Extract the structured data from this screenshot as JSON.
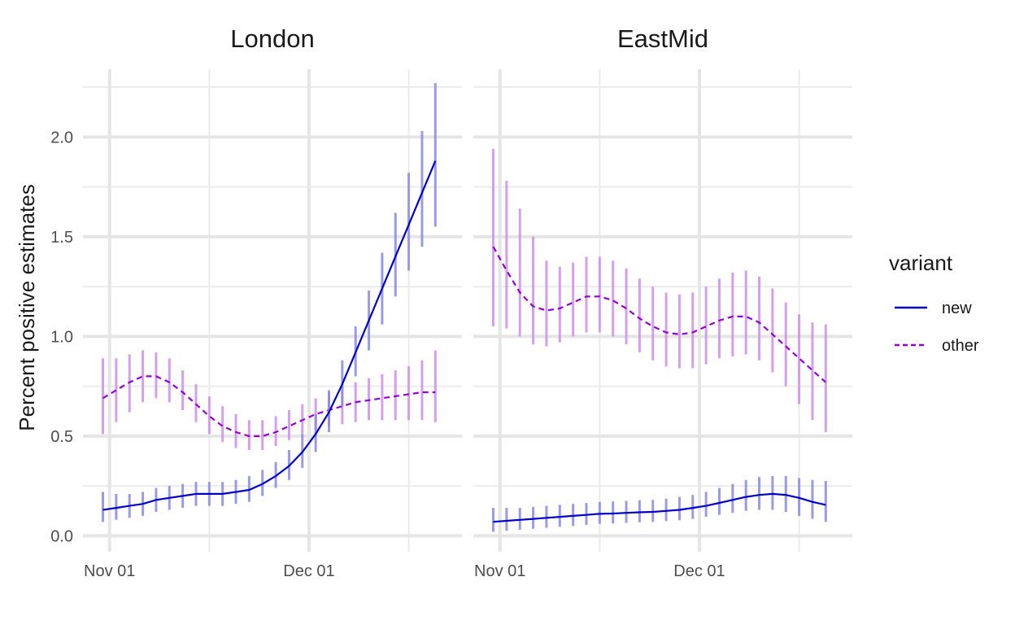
{
  "chart_data": {
    "type": "line",
    "y_label": "Percent positive estimates",
    "x_tick_labels": [
      "Nov 01",
      "Dec 01"
    ],
    "x_tick_dates": [
      "2020-11-01",
      "2020-12-01"
    ],
    "y_ticks": [
      0.0,
      0.5,
      1.0,
      1.5,
      2.0
    ],
    "y_tick_labels": [
      "0.0",
      "0.5",
      "1.0",
      "1.5",
      "2.0"
    ],
    "ylim": [
      -0.08,
      2.34
    ],
    "xlim": [
      "2020-10-28",
      "2020-12-24"
    ],
    "grid": true,
    "legend": {
      "title": "variant",
      "placement": "right",
      "entries": [
        {
          "label": "new",
          "color": "#0000c8",
          "dash": "solid"
        },
        {
          "label": "other",
          "color": "#9400d3",
          "dash": "dashed"
        }
      ]
    },
    "colors": {
      "new_line": "#0000c8",
      "new_bar": "#8888e0",
      "other_line": "#9400d3",
      "other_bar": "#cc8ee8"
    },
    "panels": [
      {
        "title": "London",
        "series": [
          {
            "name": "new",
            "dates": [
              "2020-10-31",
              "2020-11-02",
              "2020-11-04",
              "2020-11-06",
              "2020-11-08",
              "2020-11-10",
              "2020-11-12",
              "2020-11-14",
              "2020-11-16",
              "2020-11-18",
              "2020-11-20",
              "2020-11-22",
              "2020-11-24",
              "2020-11-26",
              "2020-11-28",
              "2020-11-30",
              "2020-12-02",
              "2020-12-04",
              "2020-12-06",
              "2020-12-08",
              "2020-12-10",
              "2020-12-12",
              "2020-12-14",
              "2020-12-16",
              "2020-12-18",
              "2020-12-20"
            ],
            "values": [
              0.13,
              0.14,
              0.15,
              0.16,
              0.18,
              0.19,
              0.2,
              0.21,
              0.21,
              0.21,
              0.22,
              0.23,
              0.26,
              0.3,
              0.35,
              0.42,
              0.51,
              0.62,
              0.76,
              0.92,
              1.08,
              1.24,
              1.4,
              1.56,
              1.72,
              1.88
            ],
            "lower": [
              0.07,
              0.08,
              0.09,
              0.1,
              0.12,
              0.13,
              0.14,
              0.15,
              0.15,
              0.15,
              0.16,
              0.17,
              0.2,
              0.24,
              0.28,
              0.34,
              0.42,
              0.52,
              0.65,
              0.8,
              0.93,
              1.06,
              1.2,
              1.33,
              1.45,
              1.55
            ],
            "upper": [
              0.22,
              0.21,
              0.21,
              0.22,
              0.24,
              0.25,
              0.26,
              0.27,
              0.27,
              0.27,
              0.28,
              0.3,
              0.33,
              0.37,
              0.43,
              0.51,
              0.61,
              0.73,
              0.88,
              1.05,
              1.23,
              1.42,
              1.62,
              1.82,
              2.03,
              2.27
            ]
          },
          {
            "name": "other",
            "dates": [
              "2020-10-31",
              "2020-11-02",
              "2020-11-04",
              "2020-11-06",
              "2020-11-08",
              "2020-11-10",
              "2020-11-12",
              "2020-11-14",
              "2020-11-16",
              "2020-11-18",
              "2020-11-20",
              "2020-11-22",
              "2020-11-24",
              "2020-11-26",
              "2020-11-28",
              "2020-11-30",
              "2020-12-02",
              "2020-12-04",
              "2020-12-06",
              "2020-12-08",
              "2020-12-10",
              "2020-12-12",
              "2020-12-14",
              "2020-12-16",
              "2020-12-18",
              "2020-12-20"
            ],
            "values": [
              0.69,
              0.73,
              0.77,
              0.8,
              0.8,
              0.77,
              0.72,
              0.66,
              0.6,
              0.55,
              0.52,
              0.5,
              0.5,
              0.52,
              0.55,
              0.58,
              0.61,
              0.63,
              0.65,
              0.67,
              0.68,
              0.69,
              0.7,
              0.71,
              0.72,
              0.72
            ],
            "lower": [
              0.51,
              0.57,
              0.62,
              0.67,
              0.69,
              0.67,
              0.63,
              0.57,
              0.51,
              0.47,
              0.44,
              0.43,
              0.43,
              0.45,
              0.48,
              0.51,
              0.53,
              0.55,
              0.56,
              0.57,
              0.58,
              0.58,
              0.58,
              0.58,
              0.58,
              0.57
            ],
            "upper": [
              0.89,
              0.89,
              0.91,
              0.93,
              0.92,
              0.89,
              0.83,
              0.76,
              0.7,
              0.65,
              0.61,
              0.58,
              0.58,
              0.6,
              0.63,
              0.66,
              0.69,
              0.72,
              0.75,
              0.77,
              0.79,
              0.81,
              0.83,
              0.85,
              0.88,
              0.93
            ]
          }
        ]
      },
      {
        "title": "EastMid",
        "series": [
          {
            "name": "new",
            "dates": [
              "2020-10-31",
              "2020-11-02",
              "2020-11-04",
              "2020-11-06",
              "2020-11-08",
              "2020-11-10",
              "2020-11-12",
              "2020-11-14",
              "2020-11-16",
              "2020-11-18",
              "2020-11-20",
              "2020-11-22",
              "2020-11-24",
              "2020-11-26",
              "2020-11-28",
              "2020-11-30",
              "2020-12-02",
              "2020-12-04",
              "2020-12-06",
              "2020-12-08",
              "2020-12-10",
              "2020-12-12",
              "2020-12-14",
              "2020-12-16",
              "2020-12-18",
              "2020-12-20"
            ],
            "values": [
              0.07,
              0.075,
              0.08,
              0.085,
              0.09,
              0.095,
              0.1,
              0.105,
              0.11,
              0.112,
              0.115,
              0.118,
              0.12,
              0.125,
              0.13,
              0.14,
              0.15,
              0.165,
              0.18,
              0.195,
              0.205,
              0.21,
              0.205,
              0.19,
              0.17,
              0.155
            ],
            "lower": [
              0.02,
              0.025,
              0.03,
              0.035,
              0.04,
              0.045,
              0.05,
              0.055,
              0.06,
              0.062,
              0.065,
              0.068,
              0.07,
              0.074,
              0.078,
              0.085,
              0.095,
              0.105,
              0.115,
              0.125,
              0.13,
              0.13,
              0.12,
              0.1,
              0.085,
              0.07
            ],
            "upper": [
              0.14,
              0.14,
              0.14,
              0.145,
              0.15,
              0.155,
              0.16,
              0.165,
              0.17,
              0.172,
              0.175,
              0.178,
              0.18,
              0.186,
              0.195,
              0.205,
              0.22,
              0.24,
              0.26,
              0.28,
              0.295,
              0.3,
              0.3,
              0.29,
              0.28,
              0.275
            ]
          },
          {
            "name": "other",
            "dates": [
              "2020-10-31",
              "2020-11-02",
              "2020-11-04",
              "2020-11-06",
              "2020-11-08",
              "2020-11-10",
              "2020-11-12",
              "2020-11-14",
              "2020-11-16",
              "2020-11-18",
              "2020-11-20",
              "2020-11-22",
              "2020-11-24",
              "2020-11-26",
              "2020-11-28",
              "2020-11-30",
              "2020-12-02",
              "2020-12-04",
              "2020-12-06",
              "2020-12-08",
              "2020-12-10",
              "2020-12-12",
              "2020-12-14",
              "2020-12-16",
              "2020-12-18",
              "2020-12-20"
            ],
            "values": [
              1.45,
              1.33,
              1.22,
              1.15,
              1.13,
              1.14,
              1.17,
              1.2,
              1.2,
              1.18,
              1.14,
              1.09,
              1.05,
              1.02,
              1.01,
              1.02,
              1.05,
              1.08,
              1.1,
              1.1,
              1.07,
              1.01,
              0.95,
              0.89,
              0.83,
              0.77
            ],
            "lower": [
              1.05,
              1.04,
              1.0,
              0.96,
              0.95,
              0.97,
              1.0,
              1.02,
              1.02,
              1.0,
              0.96,
              0.92,
              0.88,
              0.85,
              0.84,
              0.84,
              0.86,
              0.89,
              0.9,
              0.91,
              0.88,
              0.82,
              0.75,
              0.66,
              0.58,
              0.52
            ],
            "upper": [
              1.94,
              1.78,
              1.64,
              1.5,
              1.38,
              1.35,
              1.37,
              1.4,
              1.4,
              1.38,
              1.34,
              1.29,
              1.25,
              1.22,
              1.21,
              1.22,
              1.25,
              1.29,
              1.32,
              1.33,
              1.3,
              1.24,
              1.17,
              1.11,
              1.07,
              1.06
            ]
          }
        ]
      }
    ]
  }
}
